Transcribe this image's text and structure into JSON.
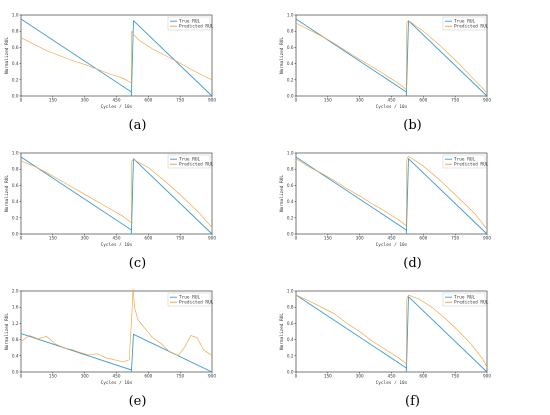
{
  "colors": {
    "true": "#3a9bd2",
    "pred": "#f39c2e"
  },
  "chart_data": [
    {
      "type": "line",
      "label": "(a)",
      "xlabel": "Cycles / 10s",
      "ylabel": "Normalized RUL",
      "xlim": [
        0,
        900
      ],
      "ylim": [
        0,
        1.0
      ],
      "xticks": [
        0,
        150,
        300,
        450,
        600,
        750,
        900
      ],
      "yticks": [
        0,
        0.2,
        0.4,
        0.6,
        0.8,
        1.0
      ],
      "legend": {
        "position": "top-right",
        "entries": [
          "True RUL",
          "Predicted RUL"
        ]
      },
      "series": [
        {
          "name": "True RUL",
          "x": [
            0,
            520,
            520,
            530,
            900
          ],
          "y": [
            0.95,
            0.05,
            0.0,
            0.93,
            0.0
          ]
        },
        {
          "name": "Predicted RUL",
          "x": [
            0,
            60,
            120,
            180,
            240,
            300,
            360,
            420,
            480,
            520,
            522,
            530,
            560,
            620,
            680,
            740,
            800,
            860,
            900
          ],
          "y": [
            0.72,
            0.64,
            0.56,
            0.5,
            0.44,
            0.39,
            0.33,
            0.27,
            0.22,
            0.16,
            0.8,
            0.76,
            0.68,
            0.58,
            0.5,
            0.42,
            0.33,
            0.25,
            0.2
          ]
        }
      ]
    },
    {
      "type": "line",
      "label": "(b)",
      "xlabel": "Cycles / 10s",
      "ylabel": "Normalized RUL",
      "xlim": [
        0,
        900
      ],
      "ylim": [
        0,
        1.0
      ],
      "xticks": [
        0,
        150,
        300,
        450,
        600,
        750,
        900
      ],
      "yticks": [
        0,
        0.2,
        0.4,
        0.6,
        0.8,
        1.0
      ],
      "legend": {
        "position": "top-right",
        "entries": [
          "True RUL",
          "Predicted RUL"
        ]
      },
      "series": [
        {
          "name": "True RUL",
          "x": [
            0,
            520,
            520,
            530,
            900
          ],
          "y": [
            0.95,
            0.05,
            0.0,
            0.93,
            0.0
          ]
        },
        {
          "name": "Predicted RUL",
          "x": [
            0,
            60,
            120,
            180,
            240,
            300,
            360,
            420,
            480,
            520,
            522,
            530,
            600,
            680,
            760,
            840,
            900
          ],
          "y": [
            0.9,
            0.82,
            0.74,
            0.65,
            0.55,
            0.45,
            0.36,
            0.26,
            0.16,
            0.08,
            0.9,
            0.93,
            0.8,
            0.62,
            0.42,
            0.2,
            0.04
          ]
        }
      ]
    },
    {
      "type": "line",
      "label": "(c)",
      "xlabel": "Cycles / 10s",
      "ylabel": "Normalized RUL",
      "xlim": [
        0,
        900
      ],
      "ylim": [
        0,
        1.0
      ],
      "xticks": [
        0,
        150,
        300,
        450,
        600,
        750,
        900
      ],
      "yticks": [
        0,
        0.2,
        0.4,
        0.6,
        0.8,
        1.0
      ],
      "legend": {
        "position": "top-right",
        "entries": [
          "True RUL",
          "Predicted RUL"
        ]
      },
      "series": [
        {
          "name": "True RUL",
          "x": [
            0,
            520,
            520,
            530,
            900
          ],
          "y": [
            0.95,
            0.05,
            0.0,
            0.93,
            0.0
          ]
        },
        {
          "name": "Predicted RUL",
          "x": [
            0,
            60,
            120,
            180,
            240,
            300,
            360,
            420,
            480,
            520,
            522,
            530,
            600,
            680,
            760,
            840,
            900
          ],
          "y": [
            0.9,
            0.84,
            0.76,
            0.67,
            0.58,
            0.49,
            0.4,
            0.31,
            0.22,
            0.14,
            0.9,
            0.92,
            0.82,
            0.65,
            0.46,
            0.26,
            0.08
          ]
        }
      ]
    },
    {
      "type": "line",
      "label": "(d)",
      "xlabel": "Cycles / 10s",
      "ylabel": "Normalized RUL",
      "xlim": [
        0,
        900
      ],
      "ylim": [
        0,
        1.0
      ],
      "xticks": [
        0,
        150,
        300,
        450,
        600,
        750,
        900
      ],
      "yticks": [
        0,
        0.2,
        0.4,
        0.6,
        0.8,
        1.0
      ],
      "legend": {
        "position": "top-right",
        "entries": [
          "True RUL",
          "Predicted RUL"
        ]
      },
      "series": [
        {
          "name": "True RUL",
          "x": [
            0,
            520,
            520,
            530,
            900
          ],
          "y": [
            0.95,
            0.05,
            0.0,
            0.93,
            0.0
          ]
        },
        {
          "name": "Predicted RUL",
          "x": [
            0,
            60,
            120,
            180,
            240,
            300,
            360,
            420,
            480,
            520,
            522,
            530,
            600,
            680,
            760,
            840,
            900
          ],
          "y": [
            0.93,
            0.83,
            0.75,
            0.66,
            0.56,
            0.47,
            0.37,
            0.28,
            0.18,
            0.1,
            0.92,
            0.96,
            0.84,
            0.66,
            0.46,
            0.26,
            0.06
          ]
        }
      ]
    },
    {
      "type": "line",
      "label": "(e)",
      "xlabel": "Cycles / 10s",
      "ylabel": "Normalized RUL",
      "xlim": [
        0,
        900
      ],
      "ylim": [
        0,
        2.0
      ],
      "xticks": [
        0,
        150,
        300,
        450,
        600,
        750,
        900
      ],
      "yticks": [
        0,
        0.4,
        0.8,
        1.2,
        1.6,
        2.0
      ],
      "legend": {
        "position": "top-right",
        "entries": [
          "True RUL",
          "Predicted RUL"
        ]
      },
      "series": [
        {
          "name": "True RUL",
          "x": [
            0,
            520,
            520,
            530,
            900
          ],
          "y": [
            0.95,
            0.05,
            0.0,
            0.93,
            0.0
          ]
        },
        {
          "name": "Predicted RUL",
          "x": [
            0,
            40,
            80,
            120,
            160,
            200,
            240,
            280,
            320,
            360,
            400,
            440,
            480,
            510,
            522,
            528,
            535,
            550,
            580,
            620,
            660,
            700,
            740,
            770,
            800,
            830,
            860,
            900
          ],
          "y": [
            0.75,
            0.9,
            0.82,
            0.88,
            0.7,
            0.6,
            0.55,
            0.48,
            0.42,
            0.45,
            0.35,
            0.3,
            0.25,
            0.3,
            1.4,
            2.05,
            1.6,
            1.3,
            1.1,
            0.85,
            0.7,
            0.5,
            0.4,
            0.6,
            0.9,
            0.85,
            0.55,
            0.4
          ]
        }
      ]
    },
    {
      "type": "line",
      "label": "(f)",
      "xlabel": "Cycles / 10s",
      "ylabel": "Normalized RUL",
      "xlim": [
        0,
        900
      ],
      "ylim": [
        0,
        1.0
      ],
      "xticks": [
        0,
        150,
        300,
        450,
        600,
        750,
        900
      ],
      "yticks": [
        0,
        0.2,
        0.4,
        0.6,
        0.8,
        1.0
      ],
      "legend": {
        "position": "top-right",
        "entries": [
          "True RUL",
          "Predicted RUL"
        ]
      },
      "series": [
        {
          "name": "True RUL",
          "x": [
            0,
            520,
            520,
            530,
            900
          ],
          "y": [
            0.95,
            0.05,
            0.0,
            0.93,
            0.0
          ]
        },
        {
          "name": "Predicted RUL",
          "x": [
            0,
            60,
            120,
            180,
            240,
            300,
            360,
            420,
            480,
            520,
            522,
            530,
            580,
            640,
            700,
            760,
            820,
            880,
            900
          ],
          "y": [
            0.95,
            0.88,
            0.8,
            0.72,
            0.6,
            0.5,
            0.38,
            0.28,
            0.18,
            0.1,
            0.9,
            0.95,
            0.9,
            0.8,
            0.67,
            0.52,
            0.36,
            0.16,
            0.06
          ]
        }
      ]
    }
  ]
}
